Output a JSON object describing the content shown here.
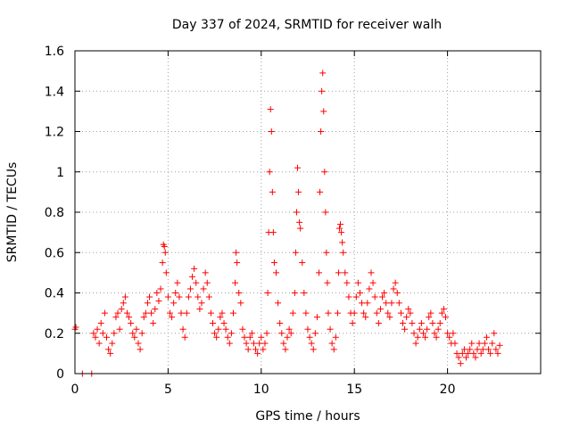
{
  "chart_data": {
    "type": "scatter",
    "title": "Day 337 of 2024, SRMTID for receiver walh",
    "xlabel": "GPS time / hours",
    "ylabel": "SRMTID / TECUs",
    "xlim": [
      0,
      25
    ],
    "ylim": [
      0,
      1.6
    ],
    "x_ticks": [
      0,
      5,
      10,
      15,
      20
    ],
    "x_tick_labels": [
      "0",
      "5",
      "10",
      "15",
      "20"
    ],
    "y_ticks": [
      0,
      0.2,
      0.4,
      0.6,
      0.8,
      1.0,
      1.2,
      1.4,
      1.6
    ],
    "y_tick_labels": [
      "0",
      "0.2",
      "0.4",
      "0.6",
      "0.8",
      "1",
      "1.2",
      "1.4",
      "1.6"
    ],
    "grid": true,
    "marker": "plus",
    "color": "#ff0000",
    "series": [
      {
        "name": "walh",
        "points": [
          [
            0.0,
            0.22
          ],
          [
            0.05,
            0.23
          ],
          [
            0.4,
            0.0
          ],
          [
            0.9,
            0.0
          ],
          [
            1.0,
            0.2
          ],
          [
            1.1,
            0.18
          ],
          [
            1.2,
            0.22
          ],
          [
            1.3,
            0.15
          ],
          [
            1.4,
            0.25
          ],
          [
            1.5,
            0.2
          ],
          [
            1.6,
            0.3
          ],
          [
            1.7,
            0.18
          ],
          [
            1.8,
            0.12
          ],
          [
            1.9,
            0.1
          ],
          [
            2.0,
            0.15
          ],
          [
            2.1,
            0.2
          ],
          [
            2.2,
            0.28
          ],
          [
            2.3,
            0.3
          ],
          [
            2.4,
            0.22
          ],
          [
            2.5,
            0.32
          ],
          [
            2.6,
            0.35
          ],
          [
            2.7,
            0.38
          ],
          [
            2.8,
            0.3
          ],
          [
            2.9,
            0.28
          ],
          [
            3.0,
            0.25
          ],
          [
            3.1,
            0.2
          ],
          [
            3.2,
            0.18
          ],
          [
            3.3,
            0.22
          ],
          [
            3.4,
            0.15
          ],
          [
            3.5,
            0.12
          ],
          [
            3.6,
            0.2
          ],
          [
            3.7,
            0.28
          ],
          [
            3.8,
            0.3
          ],
          [
            3.9,
            0.35
          ],
          [
            4.0,
            0.38
          ],
          [
            4.1,
            0.3
          ],
          [
            4.2,
            0.25
          ],
          [
            4.3,
            0.32
          ],
          [
            4.4,
            0.4
          ],
          [
            4.5,
            0.36
          ],
          [
            4.6,
            0.42
          ],
          [
            4.7,
            0.55
          ],
          [
            4.75,
            0.64
          ],
          [
            4.8,
            0.63
          ],
          [
            4.85,
            0.6
          ],
          [
            4.9,
            0.5
          ],
          [
            5.0,
            0.38
          ],
          [
            5.1,
            0.3
          ],
          [
            5.2,
            0.28
          ],
          [
            5.3,
            0.35
          ],
          [
            5.4,
            0.4
          ],
          [
            5.5,
            0.45
          ],
          [
            5.6,
            0.38
          ],
          [
            5.7,
            0.3
          ],
          [
            5.8,
            0.22
          ],
          [
            5.9,
            0.18
          ],
          [
            6.0,
            0.3
          ],
          [
            6.1,
            0.38
          ],
          [
            6.2,
            0.42
          ],
          [
            6.3,
            0.48
          ],
          [
            6.4,
            0.52
          ],
          [
            6.5,
            0.45
          ],
          [
            6.6,
            0.38
          ],
          [
            6.7,
            0.32
          ],
          [
            6.8,
            0.35
          ],
          [
            6.9,
            0.42
          ],
          [
            7.0,
            0.5
          ],
          [
            7.1,
            0.45
          ],
          [
            7.2,
            0.38
          ],
          [
            7.3,
            0.3
          ],
          [
            7.4,
            0.25
          ],
          [
            7.5,
            0.2
          ],
          [
            7.6,
            0.18
          ],
          [
            7.7,
            0.22
          ],
          [
            7.8,
            0.28
          ],
          [
            7.9,
            0.3
          ],
          [
            8.0,
            0.25
          ],
          [
            8.1,
            0.22
          ],
          [
            8.2,
            0.18
          ],
          [
            8.3,
            0.15
          ],
          [
            8.4,
            0.2
          ],
          [
            8.5,
            0.3
          ],
          [
            8.6,
            0.45
          ],
          [
            8.65,
            0.6
          ],
          [
            8.7,
            0.55
          ],
          [
            8.8,
            0.4
          ],
          [
            8.9,
            0.35
          ],
          [
            9.0,
            0.22
          ],
          [
            9.1,
            0.18
          ],
          [
            9.2,
            0.15
          ],
          [
            9.3,
            0.12
          ],
          [
            9.4,
            0.18
          ],
          [
            9.5,
            0.2
          ],
          [
            9.6,
            0.15
          ],
          [
            9.7,
            0.12
          ],
          [
            9.8,
            0.1
          ],
          [
            9.9,
            0.15
          ],
          [
            10.0,
            0.18
          ],
          [
            10.1,
            0.12
          ],
          [
            10.2,
            0.15
          ],
          [
            10.3,
            0.2
          ],
          [
            10.35,
            0.4
          ],
          [
            10.4,
            0.7
          ],
          [
            10.45,
            1.0
          ],
          [
            10.5,
            1.31
          ],
          [
            10.55,
            1.2
          ],
          [
            10.6,
            0.9
          ],
          [
            10.65,
            0.7
          ],
          [
            10.7,
            0.55
          ],
          [
            10.8,
            0.5
          ],
          [
            10.9,
            0.35
          ],
          [
            11.0,
            0.25
          ],
          [
            11.1,
            0.2
          ],
          [
            11.2,
            0.15
          ],
          [
            11.3,
            0.12
          ],
          [
            11.4,
            0.18
          ],
          [
            11.5,
            0.22
          ],
          [
            11.6,
            0.2
          ],
          [
            11.7,
            0.3
          ],
          [
            11.8,
            0.4
          ],
          [
            11.85,
            0.6
          ],
          [
            11.9,
            0.8
          ],
          [
            11.95,
            1.02
          ],
          [
            12.0,
            0.9
          ],
          [
            12.05,
            0.75
          ],
          [
            12.1,
            0.72
          ],
          [
            12.2,
            0.55
          ],
          [
            12.3,
            0.4
          ],
          [
            12.4,
            0.3
          ],
          [
            12.5,
            0.22
          ],
          [
            12.6,
            0.18
          ],
          [
            12.7,
            0.15
          ],
          [
            12.8,
            0.12
          ],
          [
            12.9,
            0.2
          ],
          [
            13.0,
            0.28
          ],
          [
            13.1,
            0.5
          ],
          [
            13.15,
            0.9
          ],
          [
            13.2,
            1.2
          ],
          [
            13.25,
            1.4
          ],
          [
            13.3,
            1.49
          ],
          [
            13.35,
            1.3
          ],
          [
            13.4,
            1.0
          ],
          [
            13.45,
            0.8
          ],
          [
            13.5,
            0.6
          ],
          [
            13.55,
            0.45
          ],
          [
            13.6,
            0.3
          ],
          [
            13.7,
            0.22
          ],
          [
            13.8,
            0.15
          ],
          [
            13.9,
            0.12
          ],
          [
            14.0,
            0.18
          ],
          [
            14.1,
            0.3
          ],
          [
            14.15,
            0.5
          ],
          [
            14.2,
            0.72
          ],
          [
            14.25,
            0.74
          ],
          [
            14.3,
            0.7
          ],
          [
            14.35,
            0.65
          ],
          [
            14.4,
            0.6
          ],
          [
            14.5,
            0.5
          ],
          [
            14.6,
            0.45
          ],
          [
            14.7,
            0.38
          ],
          [
            14.8,
            0.3
          ],
          [
            14.9,
            0.25
          ],
          [
            15.0,
            0.3
          ],
          [
            15.1,
            0.38
          ],
          [
            15.2,
            0.45
          ],
          [
            15.3,
            0.4
          ],
          [
            15.4,
            0.35
          ],
          [
            15.5,
            0.3
          ],
          [
            15.6,
            0.28
          ],
          [
            15.7,
            0.35
          ],
          [
            15.8,
            0.42
          ],
          [
            15.9,
            0.5
          ],
          [
            16.0,
            0.45
          ],
          [
            16.1,
            0.38
          ],
          [
            16.2,
            0.3
          ],
          [
            16.3,
            0.25
          ],
          [
            16.4,
            0.32
          ],
          [
            16.5,
            0.38
          ],
          [
            16.6,
            0.4
          ],
          [
            16.7,
            0.35
          ],
          [
            16.8,
            0.3
          ],
          [
            16.9,
            0.28
          ],
          [
            17.0,
            0.35
          ],
          [
            17.1,
            0.42
          ],
          [
            17.2,
            0.45
          ],
          [
            17.3,
            0.4
          ],
          [
            17.4,
            0.35
          ],
          [
            17.5,
            0.3
          ],
          [
            17.6,
            0.25
          ],
          [
            17.7,
            0.22
          ],
          [
            17.8,
            0.28
          ],
          [
            17.9,
            0.32
          ],
          [
            18.0,
            0.3
          ],
          [
            18.1,
            0.25
          ],
          [
            18.2,
            0.2
          ],
          [
            18.3,
            0.15
          ],
          [
            18.4,
            0.18
          ],
          [
            18.5,
            0.22
          ],
          [
            18.6,
            0.25
          ],
          [
            18.7,
            0.2
          ],
          [
            18.8,
            0.18
          ],
          [
            18.9,
            0.22
          ],
          [
            19.0,
            0.28
          ],
          [
            19.1,
            0.3
          ],
          [
            19.2,
            0.25
          ],
          [
            19.3,
            0.2
          ],
          [
            19.4,
            0.18
          ],
          [
            19.5,
            0.22
          ],
          [
            19.6,
            0.25
          ],
          [
            19.7,
            0.3
          ],
          [
            19.8,
            0.32
          ],
          [
            19.9,
            0.28
          ],
          [
            20.0,
            0.2
          ],
          [
            20.1,
            0.18
          ],
          [
            20.2,
            0.15
          ],
          [
            20.3,
            0.2
          ],
          [
            20.4,
            0.15
          ],
          [
            20.5,
            0.1
          ],
          [
            20.6,
            0.08
          ],
          [
            20.7,
            0.05
          ],
          [
            20.8,
            0.1
          ],
          [
            20.9,
            0.12
          ],
          [
            21.0,
            0.08
          ],
          [
            21.1,
            0.1
          ],
          [
            21.2,
            0.12
          ],
          [
            21.3,
            0.15
          ],
          [
            21.4,
            0.1
          ],
          [
            21.5,
            0.08
          ],
          [
            21.6,
            0.12
          ],
          [
            21.7,
            0.15
          ],
          [
            21.8,
            0.1
          ],
          [
            21.9,
            0.12
          ],
          [
            22.0,
            0.15
          ],
          [
            22.1,
            0.18
          ],
          [
            22.2,
            0.12
          ],
          [
            22.3,
            0.1
          ],
          [
            22.4,
            0.15
          ],
          [
            22.5,
            0.2
          ],
          [
            22.6,
            0.12
          ],
          [
            22.7,
            0.1
          ],
          [
            22.8,
            0.14
          ]
        ]
      }
    ]
  }
}
